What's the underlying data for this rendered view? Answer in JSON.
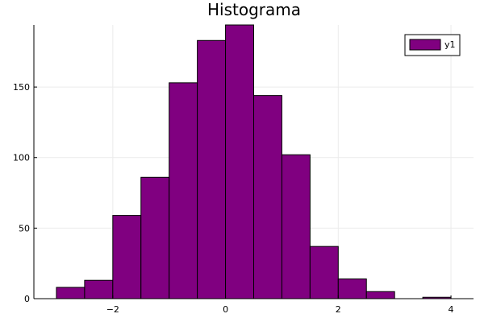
{
  "chart_data": {
    "type": "bar",
    "title": "Histograma",
    "xlabel": "",
    "ylabel": "",
    "bin_edges": [
      -3,
      -2.5,
      -2,
      -1.5,
      -1,
      -0.5,
      0,
      0.5,
      1,
      1.5,
      2,
      2.5,
      3,
      3.5,
      4
    ],
    "series": [
      {
        "name": "y1",
        "values": [
          8,
          13,
          59,
          86,
          153,
          183,
          194,
          144,
          102,
          37,
          14,
          5,
          0,
          1
        ],
        "color": "#800080"
      }
    ],
    "xlim": [
      -3.4,
      4.4
    ],
    "ylim": [
      0,
      194
    ],
    "xticks": [
      -2,
      0,
      2,
      4
    ],
    "xtick_labels": [
      "−2",
      "0",
      "2",
      "4"
    ],
    "yticks": [
      0,
      50,
      100,
      150
    ],
    "ytick_labels": [
      "0",
      "50",
      "100",
      "150"
    ],
    "grid": true,
    "legend_position": "top-right",
    "colors": {
      "bar_fill": "#800080",
      "bar_stroke": "#000000",
      "grid": "#ebebeb",
      "axis": "#000000"
    }
  }
}
